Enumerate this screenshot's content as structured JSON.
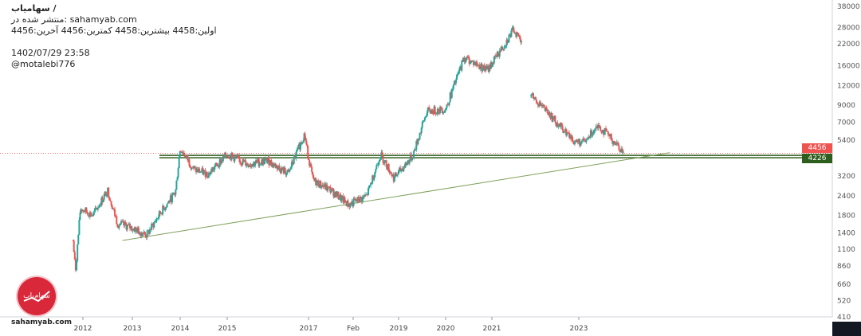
{
  "header": {
    "title": "سهامیاب /",
    "published": "منتشر شده در: sahamyab.com",
    "ohlc": "اولین:4458  بیشترین:4458  کمترین:4456  آخرین:4456",
    "timestamp": "1402/07/29 23:58",
    "user": "@motalebi776"
  },
  "logo": {
    "text": "sahamyab.com",
    "mark": "سهام‌یاب"
  },
  "colors": {
    "up": "#26a69a",
    "down": "#ef5350",
    "trend": "#7fa05a",
    "support": "#2e5e1e",
    "last": "#ef5350"
  },
  "chart_data": {
    "type": "candlestick",
    "scale": "log",
    "y_ticks": [
      410,
      520,
      660,
      860,
      1100,
      1400,
      1800,
      2400,
      3200,
      4226,
      4456,
      5400,
      7000,
      9000,
      12000,
      16000,
      22000,
      28000,
      38000
    ],
    "x_ticks": [
      "2012",
      "2013",
      "2014",
      "2015",
      "2017",
      "Feb",
      "2019",
      "2020",
      "2021",
      "2023"
    ],
    "last_price": 4456,
    "support_level": 4226,
    "price_path": [
      {
        "t": 2011.8,
        "v": 1250
      },
      {
        "t": 2011.85,
        "v": 800
      },
      {
        "t": 2011.95,
        "v": 2000
      },
      {
        "t": 2012.2,
        "v": 1800
      },
      {
        "t": 2012.5,
        "v": 2600
      },
      {
        "t": 2012.7,
        "v": 1600
      },
      {
        "t": 2013.0,
        "v": 1500
      },
      {
        "t": 2013.3,
        "v": 1350
      },
      {
        "t": 2013.6,
        "v": 1900
      },
      {
        "t": 2013.9,
        "v": 2500
      },
      {
        "t": 2014.0,
        "v": 4800
      },
      {
        "t": 2014.3,
        "v": 3500
      },
      {
        "t": 2014.6,
        "v": 3300
      },
      {
        "t": 2015.0,
        "v": 4400
      },
      {
        "t": 2015.5,
        "v": 3800
      },
      {
        "t": 2016.0,
        "v": 4000
      },
      {
        "t": 2016.5,
        "v": 3300
      },
      {
        "t": 2016.9,
        "v": 5900
      },
      {
        "t": 2017.1,
        "v": 3000
      },
      {
        "t": 2017.5,
        "v": 2600
      },
      {
        "t": 2017.9,
        "v": 2100
      },
      {
        "t": 2018.3,
        "v": 2400
      },
      {
        "t": 2018.6,
        "v": 4400
      },
      {
        "t": 2018.9,
        "v": 3100
      },
      {
        "t": 2019.3,
        "v": 4300
      },
      {
        "t": 2019.6,
        "v": 8200
      },
      {
        "t": 2020.0,
        "v": 8500
      },
      {
        "t": 2020.4,
        "v": 18000
      },
      {
        "t": 2020.9,
        "v": 15000
      },
      {
        "t": 2021.2,
        "v": 20000
      },
      {
        "t": 2021.5,
        "v": 27000
      },
      {
        "t": 2021.7,
        "v": 23000
      }
    ],
    "price_path_after_gap": [
      {
        "t": 2021.9,
        "v": 10500
      },
      {
        "t": 2022.2,
        "v": 8500
      },
      {
        "t": 2022.6,
        "v": 6500
      },
      {
        "t": 2022.9,
        "v": 5300
      },
      {
        "t": 2023.1,
        "v": 5200
      },
      {
        "t": 2023.3,
        "v": 6800
      },
      {
        "t": 2023.6,
        "v": 5200
      },
      {
        "t": 2023.75,
        "v": 4456
      }
    ],
    "trendline": [
      {
        "t": 2012.8,
        "v": 1250
      },
      {
        "t": 2024.5,
        "v": 4500
      }
    ]
  }
}
